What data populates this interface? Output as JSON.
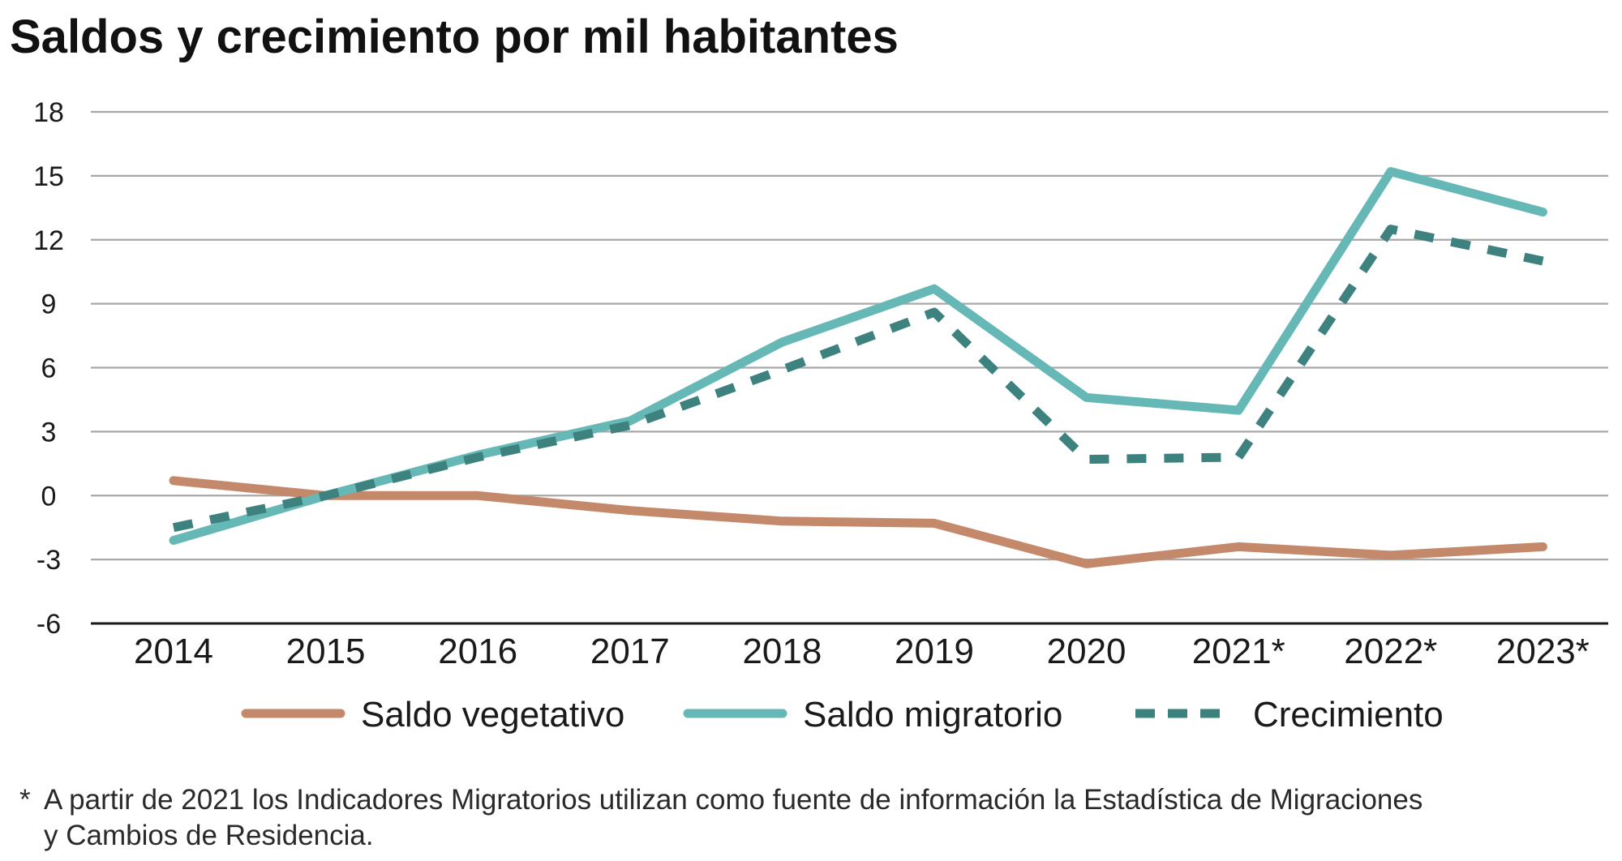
{
  "chart_data": {
    "type": "line",
    "title": "Saldos y crecimiento por mil habitantes",
    "categories": [
      "2014",
      "2015",
      "2016",
      "2017",
      "2018",
      "2019",
      "2020",
      "2021*",
      "2022*",
      "2023*"
    ],
    "ylim": [
      -6,
      18
    ],
    "yticks": [
      18,
      15,
      12,
      9,
      6,
      3,
      0,
      -3,
      -6
    ],
    "ytick_labels": [
      "18",
      "15",
      "12",
      "9",
      "6",
      "3",
      "0",
      "-3",
      "-6"
    ],
    "grid": true,
    "legend_position": "bottom",
    "series": [
      {
        "name": "Saldo vegetativo",
        "color": "#C4896A",
        "dashed": false,
        "values": [
          0.7,
          0.0,
          0.0,
          -0.7,
          -1.2,
          -1.3,
          -3.2,
          -2.4,
          -2.8,
          -2.4
        ]
      },
      {
        "name": "Saldo migratorio",
        "color": "#66B8B6",
        "dashed": false,
        "values": [
          -2.1,
          0.0,
          1.9,
          3.5,
          7.2,
          9.7,
          4.6,
          4.0,
          15.2,
          13.3
        ]
      },
      {
        "name": "Crecimiento",
        "color": "#3E8280",
        "dashed": true,
        "values": [
          -1.5,
          0.0,
          1.8,
          3.3,
          5.9,
          8.6,
          1.7,
          1.8,
          12.5,
          11.0
        ]
      }
    ]
  },
  "footnote": {
    "marker": "*",
    "line1": "A partir de 2021 los Indicadores Migratorios utilizan como fuente de información la Estadística de Migraciones",
    "line2": "y Cambios de Residencia."
  }
}
